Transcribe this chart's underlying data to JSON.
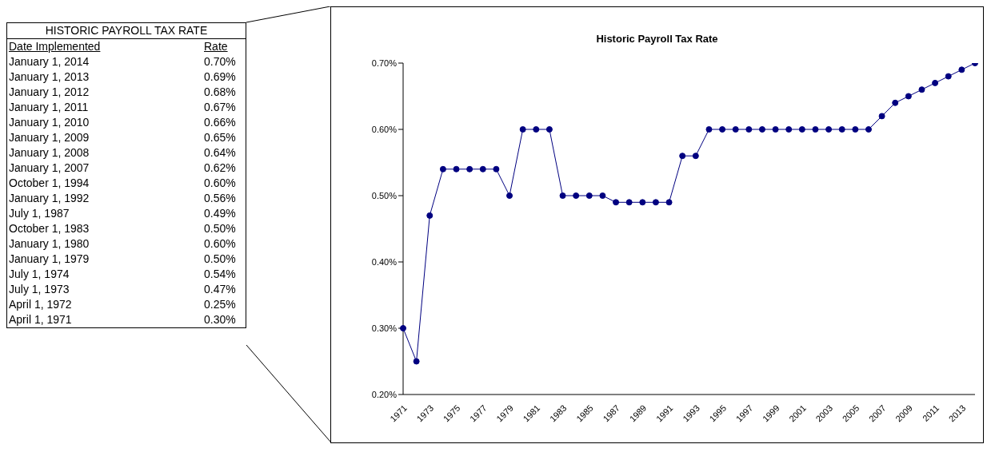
{
  "chart_data": {
    "type": "line",
    "title": "Historic Payroll Tax Rate",
    "categories": [
      "1971",
      null,
      "1973",
      null,
      "1975",
      null,
      "1977",
      null,
      "1979",
      null,
      "1981",
      null,
      "1983",
      null,
      "1985",
      null,
      "1987",
      null,
      "1989",
      null,
      "1991",
      null,
      "1993",
      null,
      "1995",
      null,
      "1997",
      null,
      "1999",
      null,
      "2001",
      null,
      "2003",
      null,
      "2005",
      null,
      "2007",
      null,
      "2009",
      null,
      "2011",
      null,
      "2013",
      null
    ],
    "series": [
      {
        "color": "#000080",
        "values": [
          0.3,
          0.25,
          0.47,
          0.54,
          0.54,
          0.54,
          0.54,
          0.54,
          0.5,
          0.6,
          0.6,
          0.6,
          0.5,
          0.5,
          0.5,
          0.5,
          0.49,
          0.49,
          0.49,
          0.49,
          0.49,
          0.56,
          0.56,
          0.6,
          0.6,
          0.6,
          0.6,
          0.6,
          0.6,
          0.6,
          0.6,
          0.6,
          0.6,
          0.6,
          0.6,
          0.6,
          0.62,
          0.64,
          0.65,
          0.66,
          0.67,
          0.68,
          0.69,
          0.7
        ]
      }
    ],
    "ylim": [
      0.2,
      0.7
    ],
    "yticks": [
      {
        "value": 0.2,
        "label": "0.20%"
      },
      {
        "value": 0.3,
        "label": "0.30%"
      },
      {
        "value": 0.4,
        "label": "0.40%"
      },
      {
        "value": 0.5,
        "label": "0.50%"
      },
      {
        "value": 0.6,
        "label": "0.60%"
      },
      {
        "value": 0.7,
        "label": "0.70%"
      }
    ],
    "marker": "circle",
    "line_style": "solid",
    "grid": false,
    "annotations": [
      "HISTORIC PAYROLL TAX RATE",
      "Date Implemented",
      "Rate",
      "January 1, 2014",
      "0.70%",
      "January 1, 2013",
      "0.69%",
      "January 1, 2012",
      "0.68%",
      "January 1, 2011",
      "0.67%",
      "January 1, 2010",
      "0.66%",
      "January 1, 2009",
      "0.65%",
      "January 1, 2008",
      "0.64%",
      "January 1, 2007",
      "0.62%",
      "October 1, 1994",
      "0.60%",
      "January 1, 1992",
      "0.56%",
      "July 1, 1987",
      "0.49%",
      "October 1, 1983",
      "0.50%",
      "January 1, 1980",
      "0.60%",
      "January 1, 1979",
      "0.50%",
      "July 1, 1974",
      "0.54%",
      "July 1, 1973",
      "0.47%",
      "April 1, 1972",
      "0.25%",
      "April 1, 1971",
      "0.30%"
    ]
  }
}
